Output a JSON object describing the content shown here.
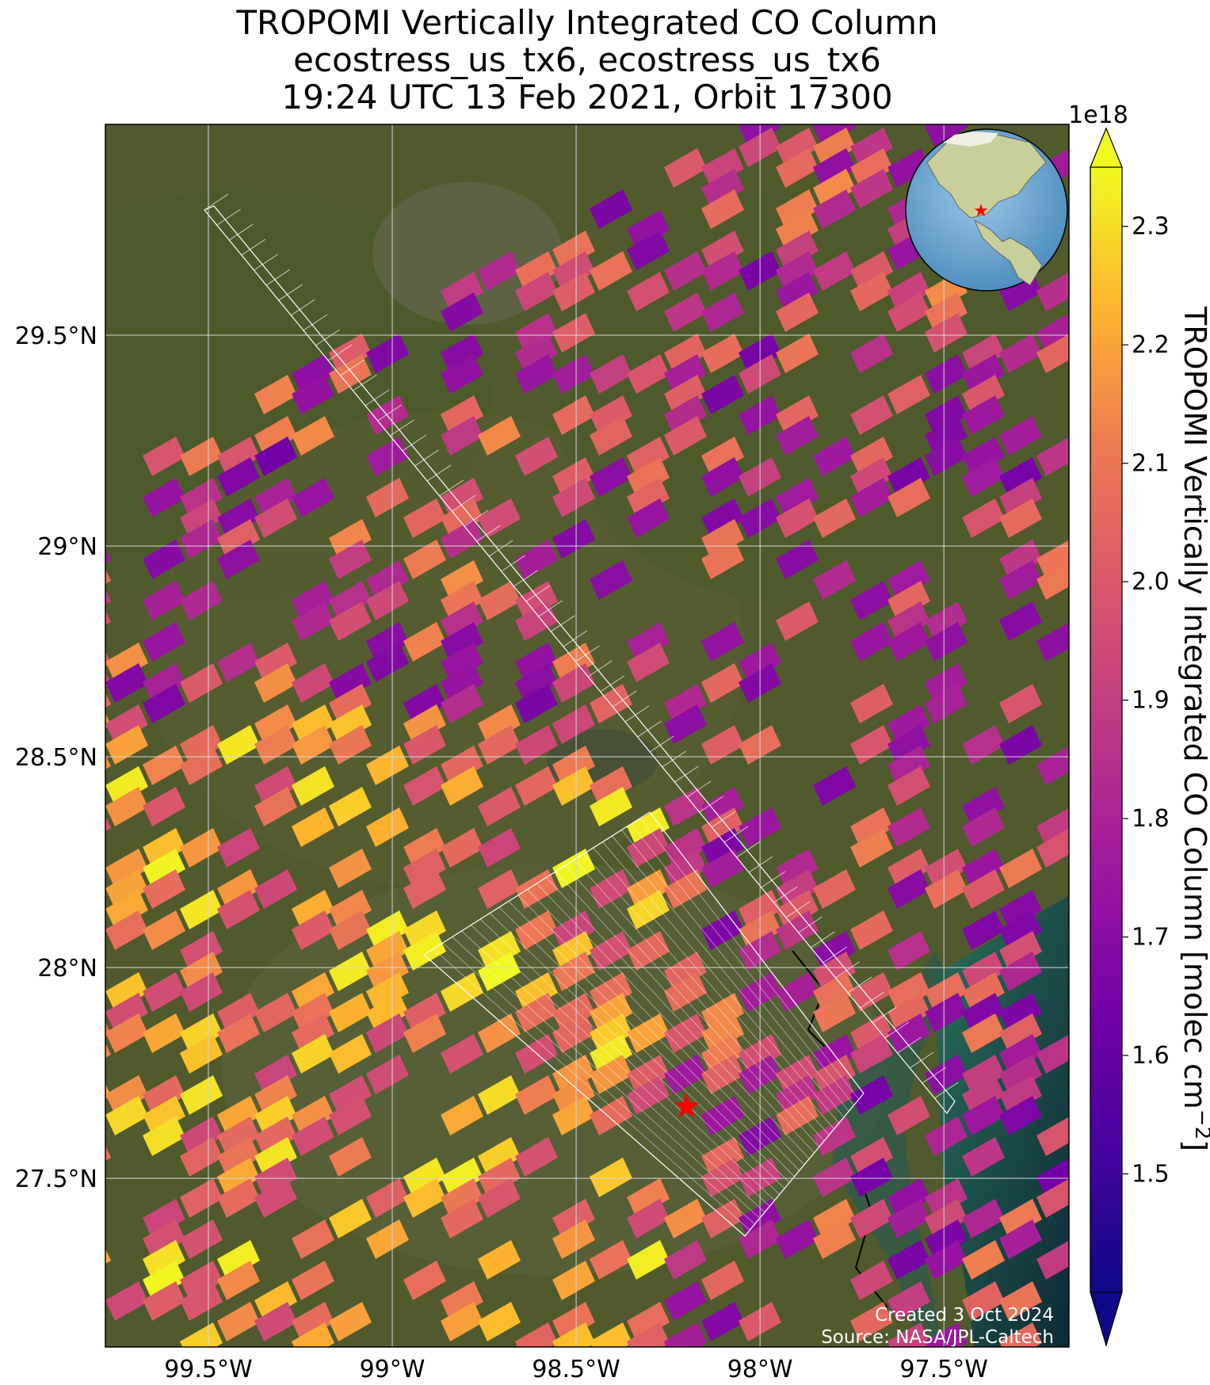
{
  "title": {
    "line1": "TROPOMI Vertically Integrated CO Column",
    "line2": "ecostress_us_tx6, ecostress_us_tx6",
    "line3": "19:24 UTC 13 Feb 2021, Orbit 17300"
  },
  "map": {
    "lon_range": [
      -99.78,
      -97.16
    ],
    "lat_range": [
      27.1,
      30.0
    ],
    "lat_ticks": [
      {
        "value": 29.5,
        "label": "29.5°N"
      },
      {
        "value": 29.0,
        "label": "29°N"
      },
      {
        "value": 28.5,
        "label": "28.5°N"
      },
      {
        "value": 28.0,
        "label": "28°N"
      },
      {
        "value": 27.5,
        "label": "27.5°N"
      }
    ],
    "lon_ticks": [
      {
        "value": -99.5,
        "label": "99.5°W"
      },
      {
        "value": -99.0,
        "label": "99°W"
      },
      {
        "value": -98.5,
        "label": "98.5°W"
      },
      {
        "value": -98.0,
        "label": "98°W"
      },
      {
        "value": -97.5,
        "label": "97.5°W"
      }
    ],
    "target_marker": {
      "lon": -98.2,
      "lat": 27.67,
      "color": "#ff0000"
    },
    "inset": {
      "type": "orthographic globe",
      "marker_color": "#ff0000"
    },
    "colors": {
      "land": "#4f5a2c",
      "water": "#1f5a4c",
      "grid": "#d8d8d8",
      "footprint": "#ffffff"
    }
  },
  "colorbar": {
    "label": "TROPOMI Vertically Integrated CO Column [molec cm$^{-2}$]",
    "label_text": "TROPOMI Vertically Integrated CO Column [molec cm",
    "label_sup": "−2",
    "label_close": "]",
    "scale_label": "1e18",
    "colormap": "plasma",
    "min": 1.4,
    "max": 2.35,
    "ticks": [
      "1.5",
      "1.6",
      "1.7",
      "1.8",
      "1.9",
      "2.0",
      "2.1",
      "2.2",
      "2.3"
    ]
  },
  "credits": {
    "created": "Created 3 Oct 2024",
    "source": "Source: NASA/JPL-Caltech"
  }
}
